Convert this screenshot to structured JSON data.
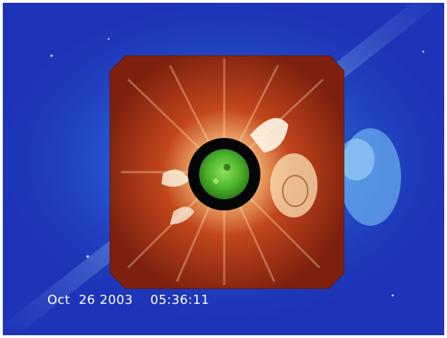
{
  "timestamp": {
    "date": "Oct  26 2003",
    "time": "05:36:11"
  },
  "colors": {
    "outer_corona_bg": "#1d34b8",
    "outer_corona_glow": "#58b9ff",
    "inner_corona_bg": "#9b2a10",
    "inner_corona_glow": "#ffd9a0",
    "occulter_disk": "#050505",
    "sun_disk": "#55c52e"
  },
  "icons": {
    "outer_coronagraph": "outer-coronagraph-image",
    "inner_coronagraph": "inner-coronagraph-image",
    "occulter": "occulting-disk",
    "sun": "solar-disk-image"
  }
}
